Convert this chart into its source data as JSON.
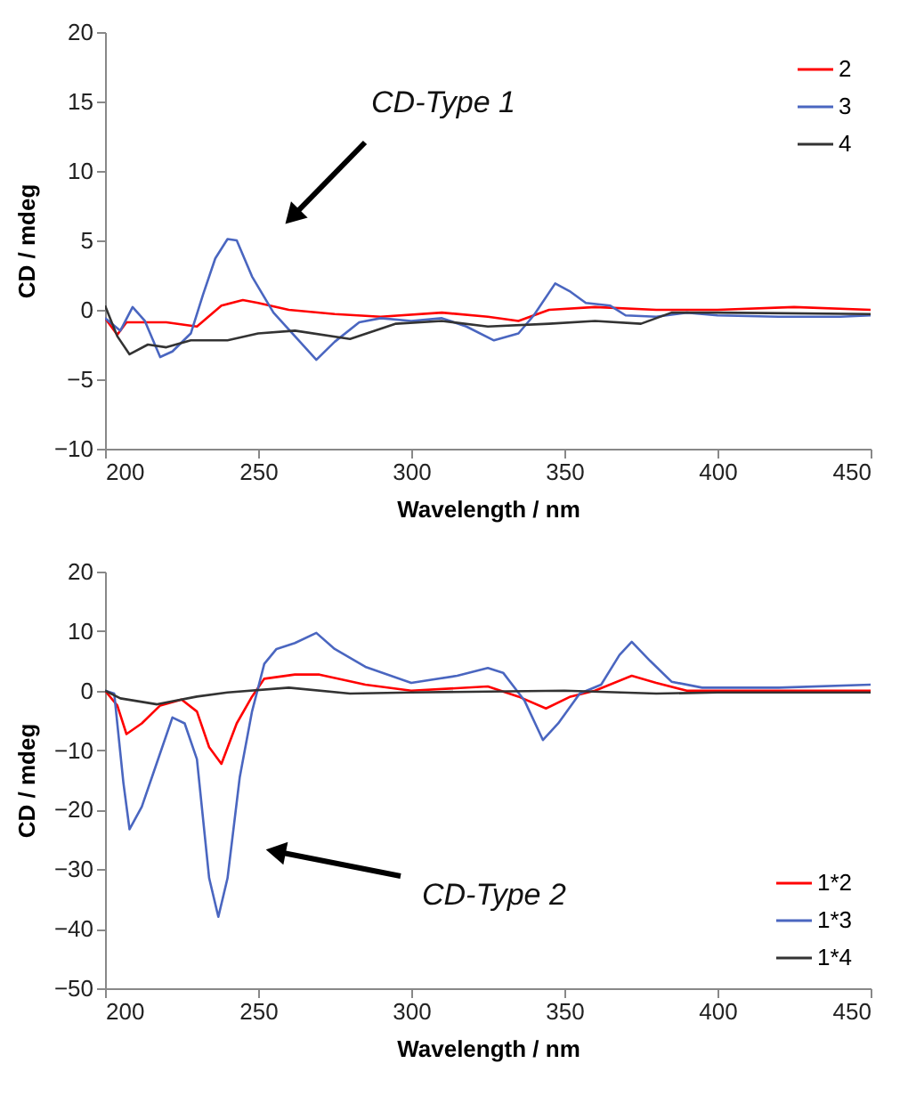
{
  "chart_data": [
    {
      "type": "line",
      "xlabel": "Wavelength / nm",
      "ylabel": "CD / mdeg",
      "xlim": [
        200,
        450
      ],
      "xticks": [
        200,
        250,
        300,
        350,
        400,
        450
      ],
      "ylim": [
        -10,
        20
      ],
      "yticks": [
        -10,
        -5,
        0,
        5,
        10,
        15,
        20
      ],
      "grid": false,
      "legend": "top right",
      "annotations": [
        "CD-Type 1"
      ],
      "series": [
        {
          "name": "2",
          "color": "#ff0000",
          "x": [
            200,
            204,
            207,
            220,
            230,
            238,
            245,
            250,
            260,
            275,
            290,
            310,
            325,
            335,
            345,
            360,
            380,
            400,
            425,
            450
          ],
          "values": [
            -0.6,
            -1.8,
            -0.9,
            -0.9,
            -1.2,
            0.3,
            0.7,
            0.5,
            0,
            -0.3,
            -0.5,
            -0.2,
            -0.5,
            -0.8,
            0,
            0.2,
            0,
            0,
            0.2,
            0
          ]
        },
        {
          "name": "3",
          "color": "#4a66c0",
          "x": [
            200,
            205,
            209,
            213,
            218,
            222,
            228,
            232,
            236,
            240,
            243,
            248,
            255,
            262,
            269,
            275,
            283,
            290,
            300,
            310,
            318,
            327,
            335,
            340,
            347,
            352,
            357,
            365,
            370,
            380,
            390,
            400,
            420,
            440,
            450
          ],
          "values": [
            -0.6,
            -1.5,
            0.2,
            -0.8,
            -3.4,
            -3.0,
            -1.7,
            1.1,
            3.7,
            5.1,
            5.0,
            2.4,
            -0.2,
            -1.9,
            -3.6,
            -2.3,
            -0.9,
            -0.6,
            -0.8,
            -0.6,
            -1.2,
            -2.2,
            -1.7,
            -0.4,
            1.9,
            1.3,
            0.5,
            0.3,
            -0.4,
            -0.5,
            -0.2,
            -0.4,
            -0.5,
            -0.5,
            -0.4
          ]
        },
        {
          "name": "4",
          "color": "#333333",
          "x": [
            200,
            204,
            208,
            214,
            220,
            228,
            240,
            250,
            262,
            280,
            295,
            310,
            325,
            345,
            360,
            375,
            385,
            400,
            450
          ],
          "values": [
            0.3,
            -1.9,
            -3.2,
            -2.5,
            -2.7,
            -2.2,
            -2.2,
            -1.7,
            -1.5,
            -2.1,
            -1.0,
            -0.8,
            -1.2,
            -1.0,
            -0.8,
            -1.0,
            -0.2,
            -0.2,
            -0.3
          ]
        }
      ]
    },
    {
      "type": "line",
      "xlabel": "Wavelength / nm",
      "ylabel": "CD / mdeg",
      "xlim": [
        200,
        450
      ],
      "xticks": [
        200,
        250,
        300,
        350,
        400,
        450
      ],
      "ylim": [
        -50,
        20
      ],
      "yticks": [
        -50,
        -40,
        -30,
        -20,
        -10,
        0,
        10,
        20
      ],
      "grid": false,
      "legend": "bottom right",
      "annotations": [
        "CD-Type 2"
      ],
      "series": [
        {
          "name": "1*2",
          "color": "#ff0000",
          "x": [
            200,
            204,
            207,
            212,
            218,
            225,
            230,
            234,
            238,
            243,
            248,
            252,
            262,
            270,
            285,
            300,
            325,
            335,
            344,
            352,
            360,
            372,
            380,
            390,
            450
          ],
          "values": [
            0,
            -2.5,
            -7.3,
            -5.5,
            -2.5,
            -1.5,
            -3.5,
            -9.5,
            -12.3,
            -5.5,
            -1,
            2,
            2.7,
            2.7,
            1,
            0,
            0.7,
            -1,
            -3,
            -1,
            0,
            2.5,
            1.3,
            0,
            0
          ]
        },
        {
          "name": "1*3",
          "color": "#4a66c0",
          "x": [
            200,
            203,
            206,
            208,
            212,
            216,
            222,
            226,
            230,
            234,
            237,
            240,
            244,
            248,
            252,
            256,
            262,
            269,
            275,
            285,
            300,
            315,
            325,
            330,
            337,
            343,
            348,
            355,
            362,
            368,
            372,
            378,
            385,
            395,
            420,
            450
          ],
          "values": [
            0,
            -0.5,
            -15.5,
            -23.3,
            -19.5,
            -13.5,
            -4.5,
            -5.5,
            -11.5,
            -31.5,
            -38,
            -31.5,
            -14.5,
            -3.5,
            4.5,
            7,
            8,
            9.7,
            7,
            4,
            1.3,
            2.5,
            3.8,
            3,
            -1.7,
            -8.3,
            -5.5,
            -0.5,
            1,
            6,
            8.2,
            5,
            1.5,
            0.5,
            0.5,
            1
          ]
        },
        {
          "name": "1*4",
          "color": "#333333",
          "x": [
            200,
            205,
            217,
            230,
            240,
            260,
            280,
            300,
            350,
            380,
            400,
            450
          ],
          "values": [
            0,
            -1.3,
            -2.3,
            -1,
            -0.3,
            0.5,
            -0.5,
            -0.3,
            0,
            -0.5,
            -0.3,
            -0.3
          ]
        }
      ]
    }
  ]
}
